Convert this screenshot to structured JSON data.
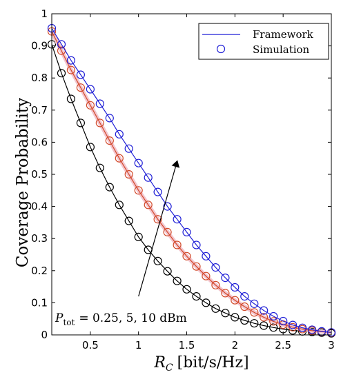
{
  "chart_data": {
    "type": "line",
    "xlabel_symbol": "R",
    "xlabel_sub": "C",
    "xlabel_unit": "[bit/s/Hz]",
    "ylabel": "Coverage Probability",
    "xlim": [
      0.1,
      3.0
    ],
    "ylim": [
      0,
      1
    ],
    "xticks": [
      0.5,
      1,
      1.5,
      2,
      2.5,
      3
    ],
    "xtick_labels": [
      "0.5",
      "1",
      "1.5",
      "2",
      "2.5",
      "3"
    ],
    "yticks": [
      0,
      0.1,
      0.2,
      0.3,
      0.4,
      0.5,
      0.6,
      0.7,
      0.8,
      0.9,
      1
    ],
    "ytick_labels": [
      "0",
      "0.1",
      "0.2",
      "0.3",
      "0.4",
      "0.5",
      "0.6",
      "0.7",
      "0.8",
      "0.9",
      "1"
    ],
    "grid": false,
    "legend": {
      "placement": "top-right",
      "entries": [
        {
          "label": "Framework",
          "style": "line",
          "color": "#1f1fd6"
        },
        {
          "label": "Simulation",
          "style": "circle",
          "color": "#1f1fd6"
        }
      ]
    },
    "annotation": {
      "text_symbol": "P",
      "text_sub": "tot",
      "text_rest": "= 0.25, 5, 10 dBm",
      "arrow_from": [
        1.0,
        0.12
      ],
      "arrow_to": [
        1.4,
        0.54
      ]
    },
    "x": [
      0.1,
      0.2,
      0.3,
      0.4,
      0.5,
      0.6,
      0.7,
      0.8,
      0.9,
      1.0,
      1.1,
      1.2,
      1.3,
      1.4,
      1.5,
      1.6,
      1.7,
      1.8,
      1.9,
      2.0,
      2.1,
      2.2,
      2.3,
      2.4,
      2.5,
      2.6,
      2.7,
      2.8,
      2.9,
      3.0
    ],
    "series": [
      {
        "color": "#000000",
        "values": [
          0.905,
          0.815,
          0.735,
          0.66,
          0.585,
          0.52,
          0.46,
          0.405,
          0.355,
          0.305,
          0.265,
          0.23,
          0.198,
          0.168,
          0.142,
          0.12,
          0.1,
          0.082,
          0.068,
          0.055,
          0.045,
          0.036,
          0.029,
          0.023,
          0.018,
          0.014,
          0.011,
          0.009,
          0.007,
          0.005
        ]
      },
      {
        "color": "#d24a2a",
        "values": [
          0.945,
          0.885,
          0.825,
          0.77,
          0.715,
          0.66,
          0.605,
          0.55,
          0.5,
          0.45,
          0.405,
          0.36,
          0.32,
          0.28,
          0.245,
          0.213,
          0.183,
          0.155,
          0.13,
          0.108,
          0.088,
          0.07,
          0.055,
          0.042,
          0.032,
          0.024,
          0.018,
          0.013,
          0.01,
          0.007
        ]
      },
      {
        "color": "#1f1fd6",
        "values": [
          0.955,
          0.905,
          0.855,
          0.81,
          0.765,
          0.72,
          0.675,
          0.625,
          0.58,
          0.535,
          0.49,
          0.445,
          0.4,
          0.36,
          0.32,
          0.28,
          0.245,
          0.21,
          0.178,
          0.148,
          0.12,
          0.097,
          0.076,
          0.058,
          0.043,
          0.031,
          0.022,
          0.016,
          0.011,
          0.008
        ]
      }
    ]
  }
}
